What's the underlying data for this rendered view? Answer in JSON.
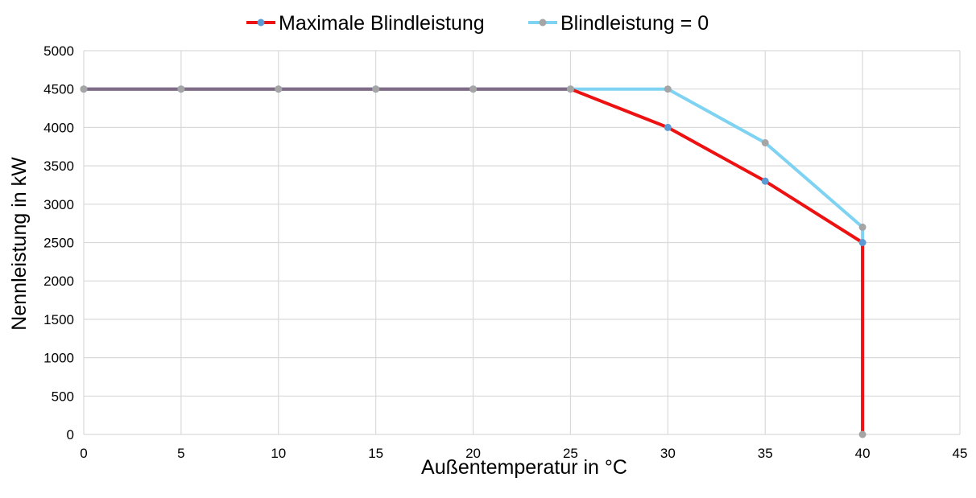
{
  "chart_data": {
    "type": "line",
    "title": "",
    "xlabel": "Außentemperatur in °C",
    "ylabel": "Nennleistung in kW",
    "xlim": [
      0,
      45
    ],
    "ylim": [
      0,
      5000
    ],
    "x_ticks": [
      "0",
      "5",
      "10",
      "15",
      "20",
      "25",
      "30",
      "35",
      "40",
      "45"
    ],
    "y_ticks": [
      "0",
      "500",
      "1000",
      "1500",
      "2000",
      "2500",
      "3000",
      "3500",
      "4000",
      "4500",
      "5000"
    ],
    "grid": true,
    "legend_position": "top",
    "series": [
      {
        "name": "Maximale Blindleistung",
        "line_color": "#ee1111",
        "marker_color": "#5b9bd5",
        "points": [
          {
            "x": 0,
            "y": 4500
          },
          {
            "x": 5,
            "y": 4500
          },
          {
            "x": 10,
            "y": 4500
          },
          {
            "x": 15,
            "y": 4500
          },
          {
            "x": 20,
            "y": 4500
          },
          {
            "x": 25,
            "y": 4500
          },
          {
            "x": 30,
            "y": 4000
          },
          {
            "x": 35,
            "y": 3300
          },
          {
            "x": 40,
            "y": 2500
          },
          {
            "x": 40,
            "y": 0
          }
        ]
      },
      {
        "name": "Blindleistung = 0",
        "line_color": "#7fd3f2",
        "marker_color": "#a5a5a5",
        "points": [
          {
            "x": 0,
            "y": 4500
          },
          {
            "x": 5,
            "y": 4500
          },
          {
            "x": 10,
            "y": 4500
          },
          {
            "x": 15,
            "y": 4500
          },
          {
            "x": 20,
            "y": 4500
          },
          {
            "x": 25,
            "y": 4500
          },
          {
            "x": 30,
            "y": 4500
          },
          {
            "x": 35,
            "y": 3800
          },
          {
            "x": 40,
            "y": 2700
          },
          {
            "x": 40,
            "y": 0
          }
        ]
      }
    ],
    "overlap_line_color": "#7e6b85"
  }
}
